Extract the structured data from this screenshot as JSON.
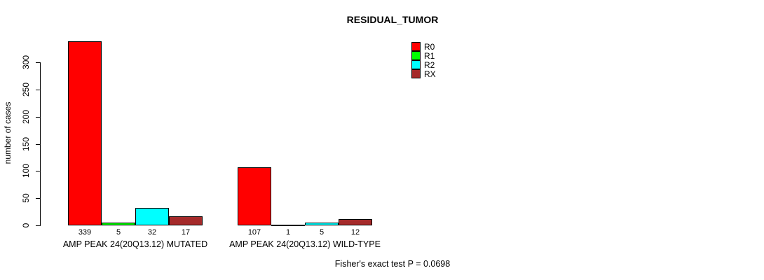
{
  "chart_data": {
    "type": "bar",
    "title": "RESIDUAL_TUMOR",
    "xlabel": "",
    "ylabel": "number of cases",
    "ylim": [
      0,
      300
    ],
    "yticks": [
      0,
      50,
      100,
      150,
      200,
      250,
      300
    ],
    "grid": false,
    "bar_value_labels": true,
    "categories": [
      "AMP PEAK 24(20Q13.12) MUTATED",
      "AMP PEAK 24(20Q13.12) WILD-TYPE"
    ],
    "series": [
      {
        "name": "R0",
        "color": "#FF0000",
        "values": [
          339,
          107
        ]
      },
      {
        "name": "R1",
        "color": "#00FF00",
        "values": [
          5,
          1
        ]
      },
      {
        "name": "R2",
        "color": "#00FFFF",
        "values": [
          32,
          5
        ]
      },
      {
        "name": "RX",
        "color": "#A52A2A",
        "values": [
          17,
          12
        ]
      }
    ],
    "legend": {
      "position": "top-right",
      "entries": [
        "R0",
        "R1",
        "R2",
        "RX"
      ]
    },
    "annotation": "Fisher's exact test P = 0.0698"
  }
}
